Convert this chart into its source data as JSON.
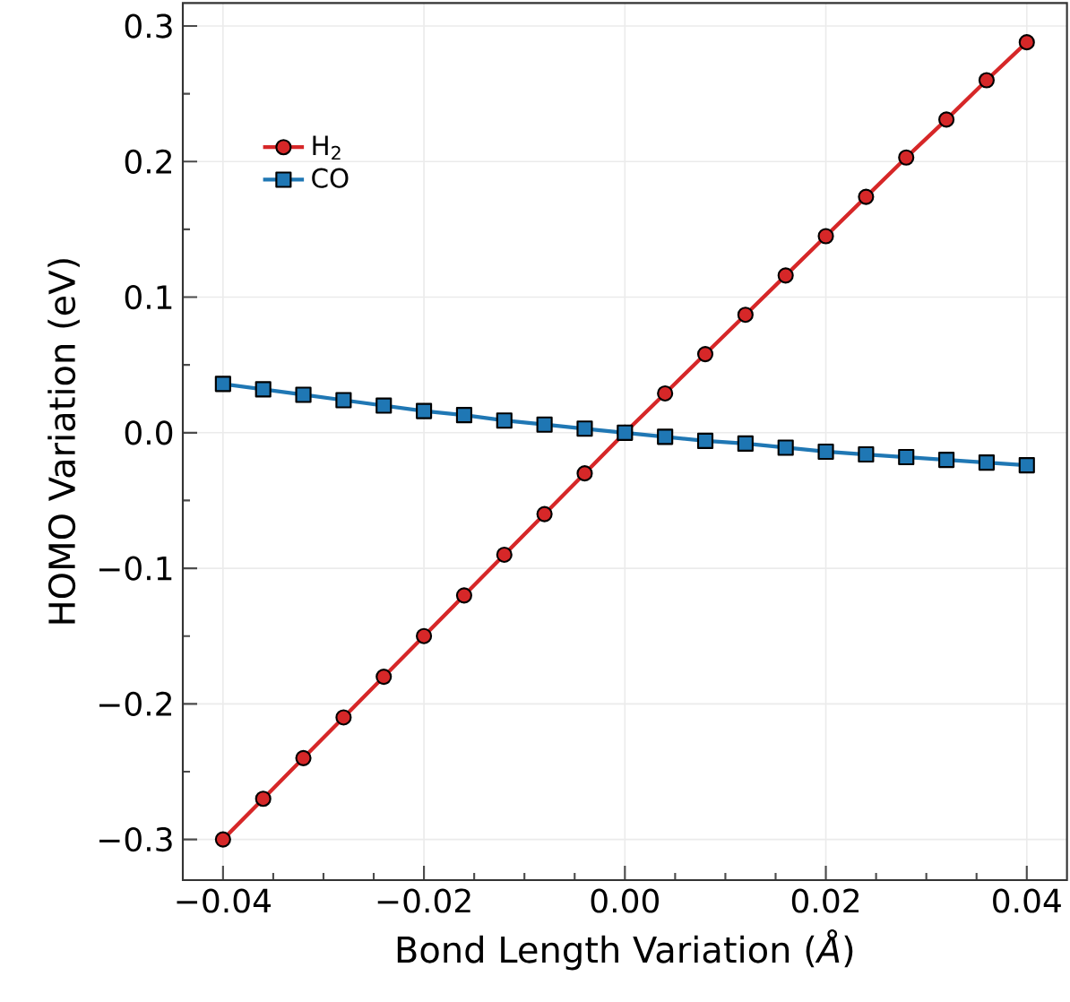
{
  "chart_data": {
    "type": "line",
    "xlabel": "Bond Length Variation (*Å*)",
    "ylabel": "HOMO Variation (eV)",
    "x": [
      -0.04,
      -0.036,
      -0.032,
      -0.028,
      -0.024,
      -0.02,
      -0.016,
      -0.012,
      -0.008,
      -0.004,
      0,
      0.004,
      0.008,
      0.012,
      0.016,
      0.02,
      0.024,
      0.028,
      0.032,
      0.036,
      0.04
    ],
    "series": [
      {
        "name": "H$_{2}$",
        "color": "#d62728",
        "marker": "circle",
        "values": [
          -0.3,
          -0.27,
          -0.24,
          -0.21,
          -0.18,
          -0.15,
          -0.12,
          -0.09,
          -0.06,
          -0.03,
          0,
          0.029,
          0.058,
          0.087,
          0.116,
          0.145,
          0.174,
          0.203,
          0.231,
          0.26,
          0.288
        ]
      },
      {
        "name": "CO",
        "color": "#1f77b4",
        "marker": "square",
        "values": [
          0.036,
          0.032,
          0.028,
          0.024,
          0.02,
          0.016,
          0.013,
          0.009,
          0.006,
          0.003,
          0,
          -0.003,
          -0.006,
          -0.008,
          -0.011,
          -0.014,
          -0.016,
          -0.018,
          -0.02,
          -0.022,
          -0.024
        ]
      }
    ],
    "xlim": [
      -0.044,
      0.044
    ],
    "ylim": [
      -0.33,
      0.317
    ],
    "xticks": [
      {
        "value": -0.04,
        "label": "−0.04"
      },
      {
        "value": -0.02,
        "label": "−0.02"
      },
      {
        "value": 0,
        "label": "0.00"
      },
      {
        "value": 0.02,
        "label": "0.02"
      },
      {
        "value": 0.04,
        "label": "0.04"
      }
    ],
    "yticks": [
      {
        "value": -0.3,
        "label": "−0.3"
      },
      {
        "value": -0.2,
        "label": "−0.2"
      },
      {
        "value": -0.1,
        "label": "−0.1"
      },
      {
        "value": 0,
        "label": "0.0"
      },
      {
        "value": 0.1,
        "label": "0.1"
      },
      {
        "value": 0.2,
        "label": "0.2"
      },
      {
        "value": 0.3,
        "label": "0.3"
      }
    ],
    "grid": true,
    "legend": "top left",
    "line_style": "solid"
  }
}
